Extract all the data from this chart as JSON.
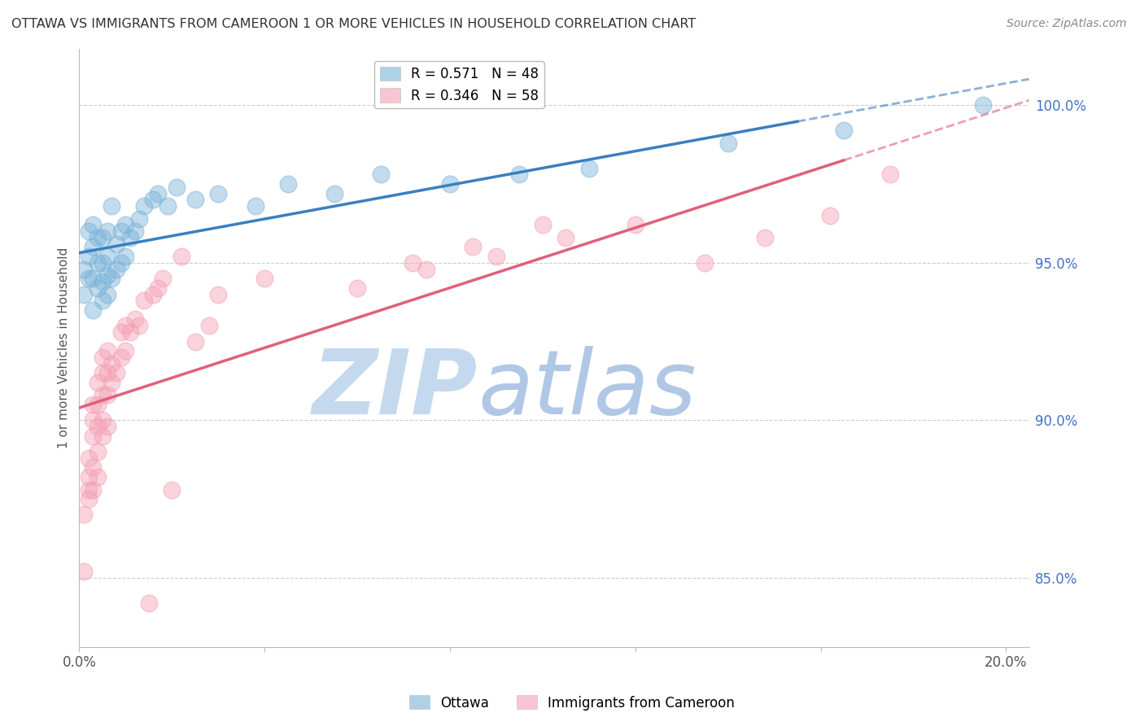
{
  "title": "OTTAWA VS IMMIGRANTS FROM CAMEROON 1 OR MORE VEHICLES IN HOUSEHOLD CORRELATION CHART",
  "source": "Source: ZipAtlas.com",
  "ylabel": "1 or more Vehicles in Household",
  "ytick_labels": [
    "85.0%",
    "90.0%",
    "95.0%",
    "100.0%"
  ],
  "ytick_values": [
    0.85,
    0.9,
    0.95,
    1.0
  ],
  "ottawa_color": "#7ab3d9",
  "cameroon_color": "#f4a0b5",
  "watermark_zip": "ZIP",
  "watermark_atlas": "atlas",
  "watermark_color_zip": "#c8ddf0",
  "watermark_color_atlas": "#b8cce8",
  "background_color": "#ffffff",
  "grid_color": "#cccccc",
  "ottawa_label": "R = 0.571   N = 48",
  "cameroon_label": "R = 0.346   N = 58",
  "legend_label_ottawa": "Ottawa",
  "legend_label_cameroon": "Immigrants from Cameroon",
  "ottawa_x": [
    0.001,
    0.001,
    0.002,
    0.002,
    0.002,
    0.003,
    0.003,
    0.003,
    0.003,
    0.004,
    0.004,
    0.004,
    0.005,
    0.005,
    0.005,
    0.005,
    0.006,
    0.006,
    0.006,
    0.006,
    0.007,
    0.007,
    0.008,
    0.008,
    0.009,
    0.009,
    0.01,
    0.01,
    0.011,
    0.012,
    0.013,
    0.014,
    0.016,
    0.017,
    0.019,
    0.021,
    0.025,
    0.03,
    0.038,
    0.045,
    0.055,
    0.065,
    0.08,
    0.095,
    0.11,
    0.14,
    0.165,
    0.195
  ],
  "ottawa_y": [
    0.94,
    0.948,
    0.945,
    0.952,
    0.96,
    0.935,
    0.945,
    0.955,
    0.962,
    0.942,
    0.95,
    0.958,
    0.938,
    0.944,
    0.95,
    0.958,
    0.94,
    0.946,
    0.952,
    0.96,
    0.945,
    0.968,
    0.948,
    0.956,
    0.95,
    0.96,
    0.952,
    0.962,
    0.958,
    0.96,
    0.964,
    0.968,
    0.97,
    0.972,
    0.968,
    0.974,
    0.97,
    0.972,
    0.968,
    0.975,
    0.972,
    0.978,
    0.975,
    0.978,
    0.98,
    0.988,
    0.992,
    1.0
  ],
  "cameroon_x": [
    0.001,
    0.001,
    0.002,
    0.002,
    0.002,
    0.002,
    0.003,
    0.003,
    0.003,
    0.003,
    0.003,
    0.004,
    0.004,
    0.004,
    0.004,
    0.004,
    0.005,
    0.005,
    0.005,
    0.005,
    0.005,
    0.006,
    0.006,
    0.006,
    0.006,
    0.007,
    0.007,
    0.008,
    0.009,
    0.009,
    0.01,
    0.01,
    0.011,
    0.012,
    0.013,
    0.014,
    0.015,
    0.016,
    0.017,
    0.018,
    0.02,
    0.022,
    0.025,
    0.028,
    0.03,
    0.04,
    0.06,
    0.075,
    0.09,
    0.105,
    0.12,
    0.135,
    0.148,
    0.162,
    0.072,
    0.085,
    0.1,
    0.175
  ],
  "cameroon_y": [
    0.87,
    0.852,
    0.875,
    0.878,
    0.882,
    0.888,
    0.878,
    0.885,
    0.895,
    0.9,
    0.905,
    0.882,
    0.89,
    0.898,
    0.905,
    0.912,
    0.895,
    0.9,
    0.908,
    0.915,
    0.92,
    0.898,
    0.908,
    0.915,
    0.922,
    0.912,
    0.918,
    0.915,
    0.92,
    0.928,
    0.922,
    0.93,
    0.928,
    0.932,
    0.93,
    0.938,
    0.842,
    0.94,
    0.942,
    0.945,
    0.878,
    0.952,
    0.925,
    0.93,
    0.94,
    0.945,
    0.942,
    0.948,
    0.952,
    0.958,
    0.962,
    0.95,
    0.958,
    0.965,
    0.95,
    0.955,
    0.962,
    0.978
  ],
  "xmin": 0.0,
  "xmax": 0.205,
  "ymin": 0.828,
  "ymax": 1.018
}
